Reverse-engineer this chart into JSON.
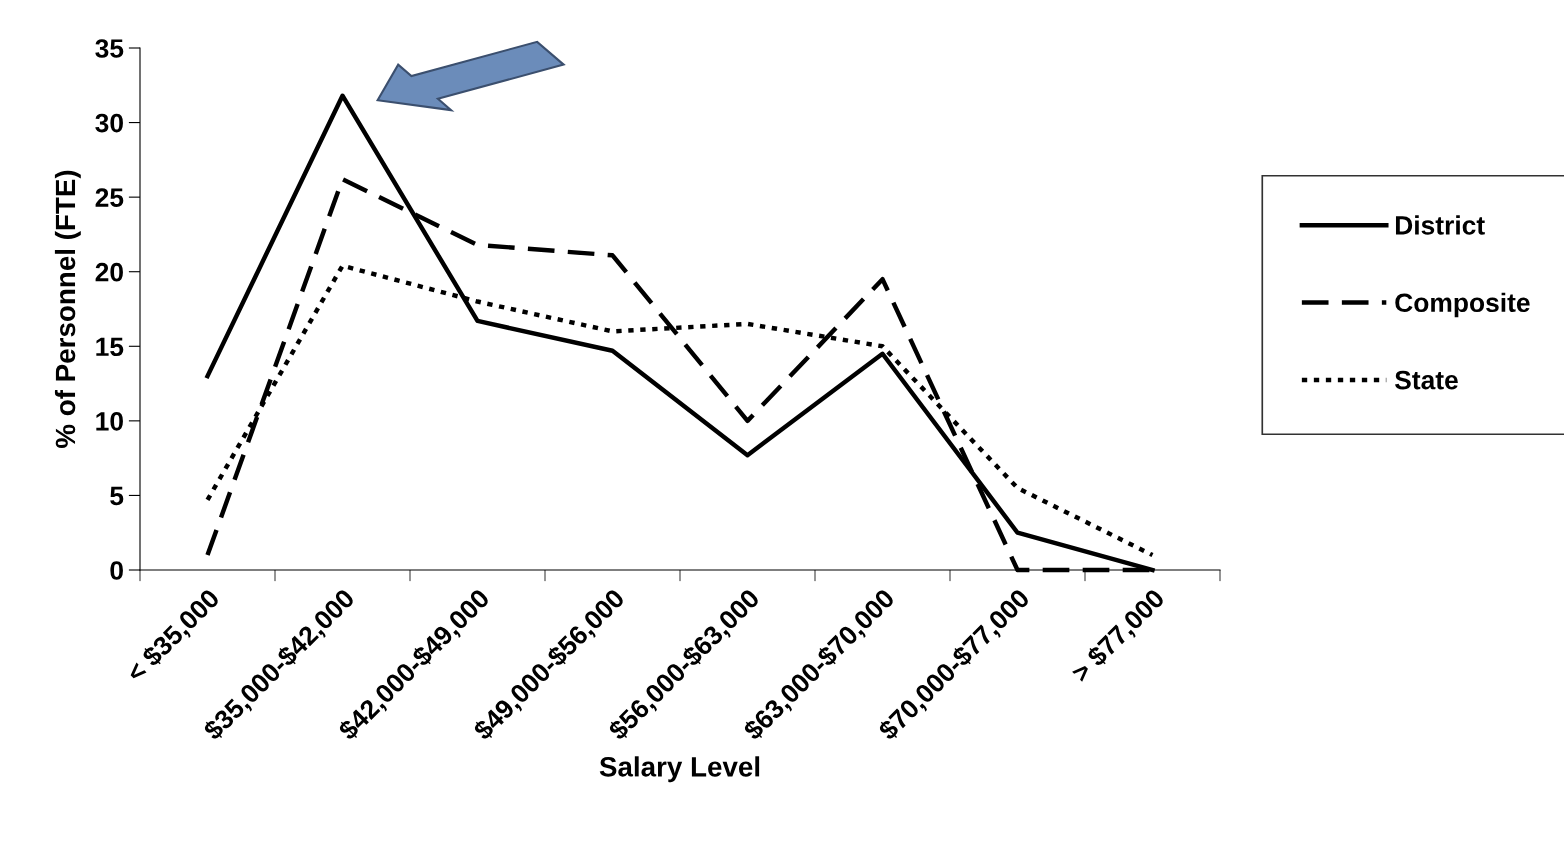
{
  "chart_data": {
    "type": "line",
    "xlabel": "Salary Level",
    "ylabel": "% of Personnel (FTE)",
    "categories": [
      "< $35,000",
      "$35,000-$42,000",
      "$42,000-$49,000",
      "$49,000-$56,000",
      "$56,000-$63,000",
      "$63,000-$70,000",
      "$70,000-$77,000",
      "> $77,000"
    ],
    "series": [
      {
        "name": "District",
        "color": "#000000",
        "line_style": "solid",
        "values": [
          13,
          31.8,
          16.7,
          14.7,
          7.7,
          14.5,
          2.5,
          0
        ]
      },
      {
        "name": "Composite",
        "color": "#000000",
        "line_style": "dashed",
        "values": [
          1,
          26.2,
          21.8,
          21.1,
          10,
          19.5,
          0,
          0
        ]
      },
      {
        "name": "State",
        "color": "#000000",
        "line_style": "dotted",
        "values": [
          4.7,
          20.4,
          18,
          16,
          16.5,
          15,
          5.5,
          1
        ]
      }
    ],
    "ylim": [
      0,
      35
    ],
    "yticks": [
      0,
      5,
      10,
      15,
      20,
      25,
      30,
      35
    ],
    "grid": false,
    "legend": "right",
    "marker": "none"
  }
}
